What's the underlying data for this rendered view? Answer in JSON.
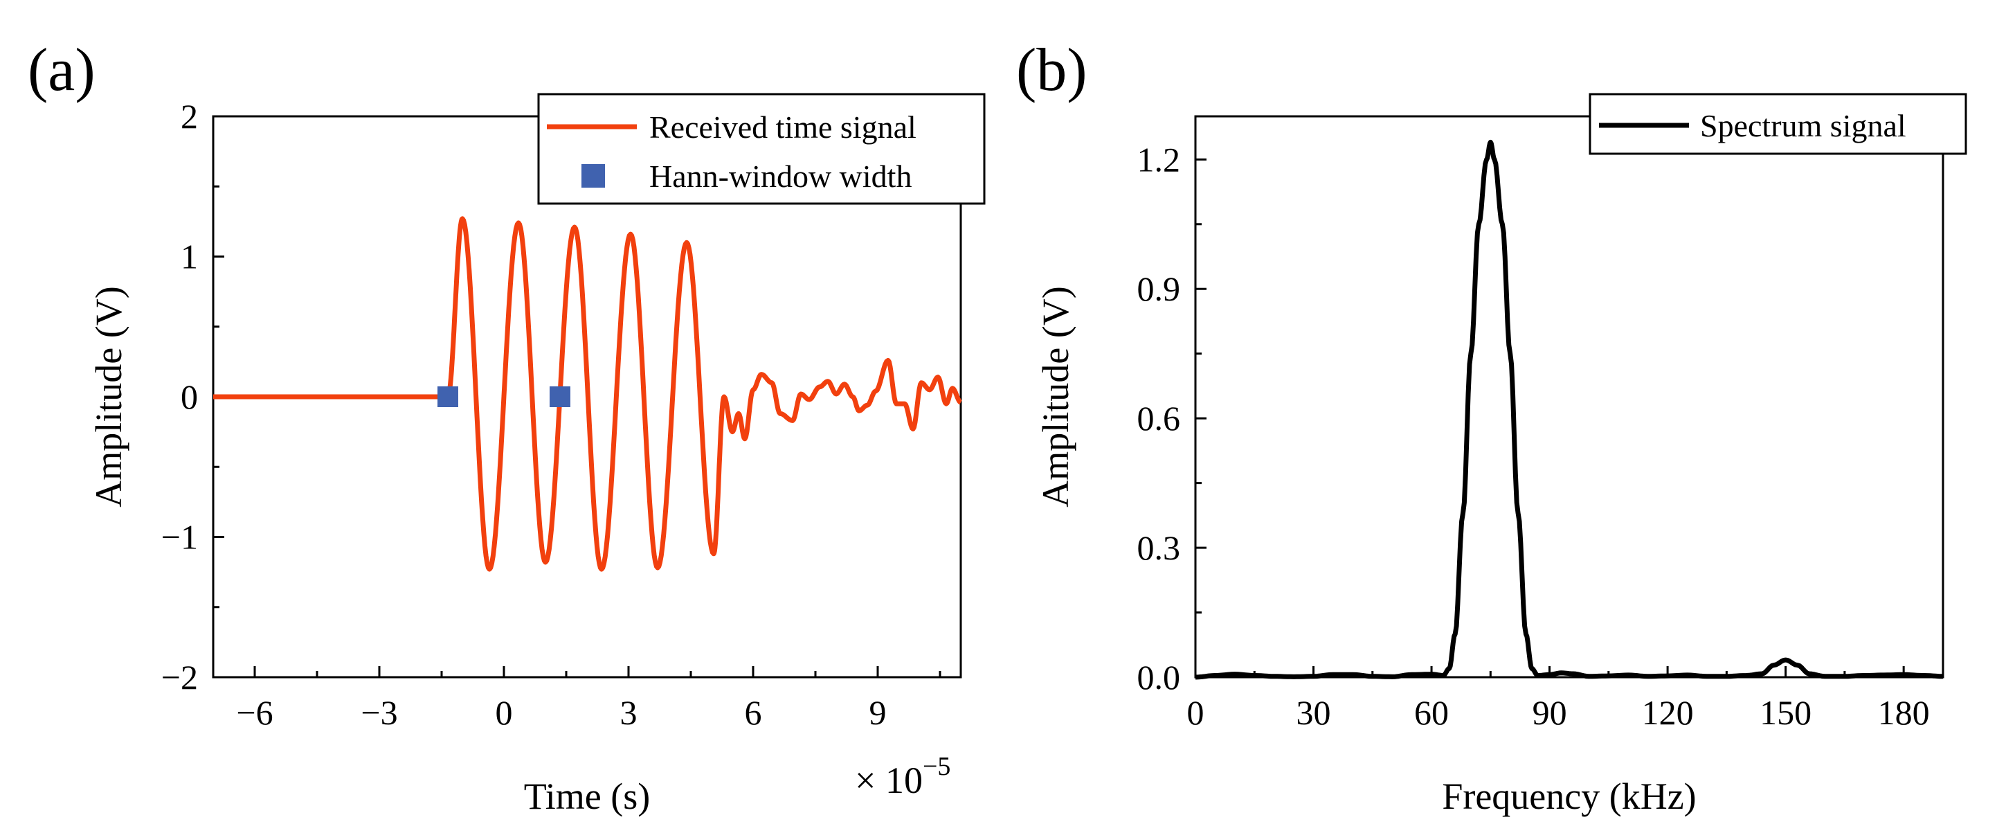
{
  "chart_data": [
    {
      "panel_label": "(a)",
      "type": "line",
      "xlabel": "Time (s)",
      "ylabel": "Amplitude (V)",
      "x_multiplier": "× 10",
      "x_multiplier_exp": "−5",
      "xlim": [
        -7.0,
        11.0
      ],
      "ylim": [
        -2,
        2
      ],
      "xticks": [
        -6,
        -3,
        0,
        3,
        6,
        9
      ],
      "xtick_labels": [
        "−6",
        "−3",
        "0",
        "3",
        "6",
        "9"
      ],
      "yticks": [
        -2,
        -1,
        0,
        1,
        2
      ],
      "ytick_labels": [
        "−2",
        "−1",
        "0",
        "1",
        "2"
      ],
      "legend_position": "top-right",
      "series": [
        {
          "name": "Received time signal",
          "kind": "line",
          "color": "#F2400E",
          "zero_until": -1.35,
          "burst_end": 5.3,
          "burst_peaks": [
            [
              -1.0,
              1.27
            ],
            [
              -0.35,
              -1.23
            ],
            [
              0.35,
              1.24
            ],
            [
              1.0,
              -1.18
            ],
            [
              1.7,
              1.21
            ],
            [
              2.35,
              -1.23
            ],
            [
              3.05,
              1.16
            ],
            [
              3.7,
              -1.22
            ],
            [
              4.4,
              1.1
            ],
            [
              5.05,
              -1.12
            ]
          ],
          "tail_points": [
            [
              5.3,
              0.0
            ],
            [
              5.5,
              -0.25
            ],
            [
              5.65,
              -0.12
            ],
            [
              5.8,
              -0.3
            ],
            [
              6.0,
              0.05
            ],
            [
              6.2,
              0.16
            ],
            [
              6.45,
              0.1
            ],
            [
              6.65,
              -0.12
            ],
            [
              6.95,
              -0.17
            ],
            [
              7.15,
              0.02
            ],
            [
              7.35,
              -0.02
            ],
            [
              7.6,
              0.07
            ],
            [
              7.8,
              0.11
            ],
            [
              8.0,
              0.02
            ],
            [
              8.2,
              0.09
            ],
            [
              8.4,
              0.0
            ],
            [
              8.55,
              -0.1
            ],
            [
              8.75,
              -0.06
            ],
            [
              8.95,
              0.04
            ],
            [
              9.25,
              0.26
            ],
            [
              9.45,
              -0.05
            ],
            [
              9.65,
              -0.05
            ],
            [
              9.85,
              -0.23
            ],
            [
              10.05,
              0.1
            ],
            [
              10.25,
              0.05
            ],
            [
              10.45,
              0.14
            ],
            [
              10.65,
              -0.05
            ],
            [
              10.8,
              0.06
            ],
            [
              11.0,
              -0.04
            ]
          ]
        },
        {
          "name": "Hann-window width",
          "kind": "scatter",
          "color": "#4062AF",
          "points": [
            [
              -1.35,
              0
            ],
            [
              1.35,
              0
            ]
          ]
        }
      ]
    },
    {
      "panel_label": "(b)",
      "type": "line",
      "xlabel": "Frequency (kHz)",
      "ylabel": "Amplitude (V)",
      "xlim": [
        0,
        190
      ],
      "ylim": [
        0,
        1.3
      ],
      "xticks": [
        0,
        30,
        60,
        90,
        120,
        150,
        180
      ],
      "xtick_labels": [
        "0",
        "30",
        "60",
        "90",
        "120",
        "150",
        "180"
      ],
      "yticks": [
        0,
        0.3,
        0.6,
        0.9,
        1.2
      ],
      "ytick_labels": [
        "0.0",
        "0.3",
        "0.6",
        "0.9",
        "1.2"
      ],
      "legend_position": "top-right",
      "series": [
        {
          "name": "Spectrum signal",
          "kind": "line",
          "color": "#000000",
          "points": [
            [
              0,
              0.0
            ],
            [
              5,
              0.004
            ],
            [
              10,
              0.007
            ],
            [
              15,
              0.004
            ],
            [
              20,
              0.002
            ],
            [
              25,
              0.001
            ],
            [
              30,
              0.002
            ],
            [
              35,
              0.006
            ],
            [
              40,
              0.006
            ],
            [
              45,
              0.002
            ],
            [
              50,
              0.001
            ],
            [
              55,
              0.006
            ],
            [
              60,
              0.007
            ],
            [
              63,
              0.004
            ],
            [
              64.5,
              0.02
            ],
            [
              66,
              0.1
            ],
            [
              68,
              0.38
            ],
            [
              70,
              0.75
            ],
            [
              72,
              1.05
            ],
            [
              74,
              1.2
            ],
            [
              75,
              1.24
            ],
            [
              76,
              1.2
            ],
            [
              78,
              1.05
            ],
            [
              80,
              0.75
            ],
            [
              82,
              0.38
            ],
            [
              84,
              0.1
            ],
            [
              85.5,
              0.02
            ],
            [
              87,
              0.004
            ],
            [
              90,
              0.006
            ],
            [
              93,
              0.01
            ],
            [
              96,
              0.008
            ],
            [
              100,
              0.002
            ],
            [
              105,
              0.003
            ],
            [
              110,
              0.005
            ],
            [
              115,
              0.002
            ],
            [
              120,
              0.003
            ],
            [
              125,
              0.005
            ],
            [
              130,
              0.002
            ],
            [
              135,
              0.002
            ],
            [
              140,
              0.004
            ],
            [
              144,
              0.008
            ],
            [
              147,
              0.028
            ],
            [
              150,
              0.04
            ],
            [
              153,
              0.028
            ],
            [
              156,
              0.008
            ],
            [
              160,
              0.002
            ],
            [
              165,
              0.002
            ],
            [
              170,
              0.004
            ],
            [
              175,
              0.005
            ],
            [
              180,
              0.006
            ],
            [
              185,
              0.004
            ],
            [
              190,
              0.002
            ]
          ]
        }
      ]
    }
  ]
}
